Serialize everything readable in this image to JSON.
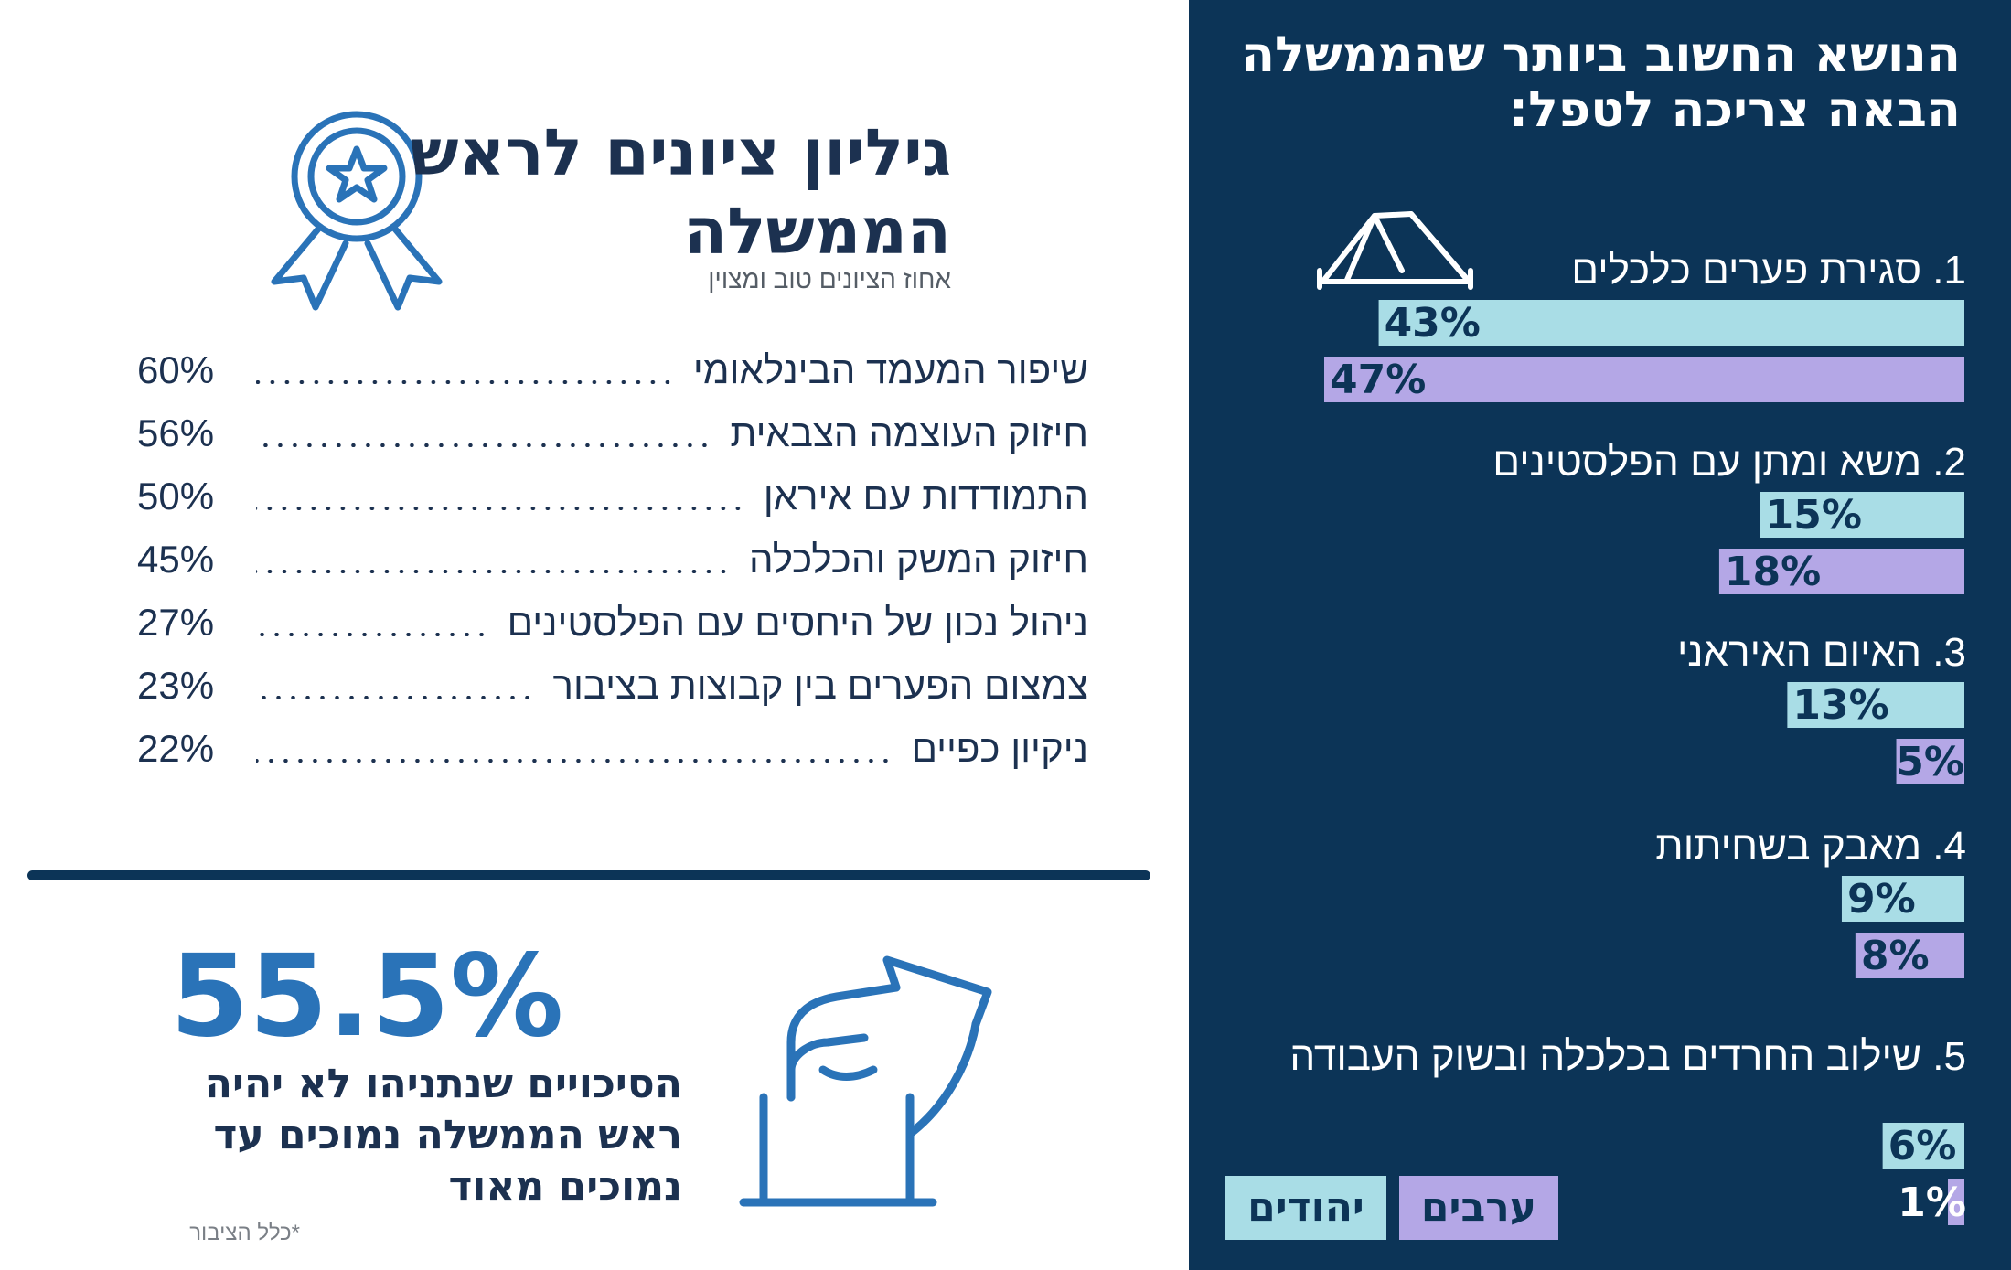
{
  "right_panel": {
    "title": "הנושא החשוב ביותר שהממשלה הבאה צריכה לטפל:"
  },
  "chart_data": {
    "type": "bar",
    "title": "הנושא החשוב ביותר שהממשלה הבאה צריכה לטפל:",
    "categories": [
      "1. סגירת פערים כלכלים",
      "2. משא ומתן עם הפלסטינים",
      "3. האיום האיראני",
      "4. מאבק בשחיתות",
      "5. שילוב החרדים בכלכלה ובשוק העבודה"
    ],
    "series": [
      {
        "name": "יהודים",
        "values": [
          43,
          15,
          13,
          9,
          6
        ],
        "labels": [
          "43%",
          "15%",
          "13%",
          "9%",
          "6%"
        ],
        "color": "#a9dde6"
      },
      {
        "name": "ערבים",
        "values": [
          47,
          18,
          5,
          8,
          1
        ],
        "labels": [
          "47%",
          "18%",
          "5%",
          "8%",
          "1%"
        ],
        "color": "#b4a7e6"
      }
    ],
    "orientation": "horizontal",
    "xlim": [
      0,
      47
    ],
    "legend_position": "bottom-left",
    "grid": false
  },
  "legend": {
    "jews": "יהודים",
    "arabs": "ערבים"
  },
  "report_card": {
    "title": "גיליון ציונים לראש הממשלה",
    "subtitle": "אחוז הציונים טוב ומצוין",
    "items": [
      {
        "label": "שיפור המעמד הבינלאומי",
        "value": "60%"
      },
      {
        "label": "חיזוק העוצמה הצבאית",
        "value": "56%"
      },
      {
        "label": "התמודדות עם איראן",
        "value": "50%"
      },
      {
        "label": "חיזוק המשק והכלכלה",
        "value": "45%"
      },
      {
        "label": "ניהול נכון של היחסים עם הפלסטינים",
        "value": "27%"
      },
      {
        "label": "צמצום הפערים בין קבוצות בציבור",
        "value": "23%"
      },
      {
        "label": "ניקיון כפיים",
        "value": "22%"
      }
    ]
  },
  "chances": {
    "value": "55.5%",
    "caption": "הסיכויים שנתניהו לא יהיה ראש הממשלה נמוכים עד נמוכים מאוד",
    "footnote": "*כלל הציבור"
  },
  "colors": {
    "panel_bg": "#0c3457",
    "jews_bar": "#a9dde6",
    "arabs_bar": "#b4a7e6",
    "accent_blue": "#2a73b8",
    "text_dark": "#1c3150"
  },
  "icons": {
    "tent": "tent-icon",
    "ribbon": "award-ribbon-icon",
    "vote": "ballot-box-icon"
  }
}
